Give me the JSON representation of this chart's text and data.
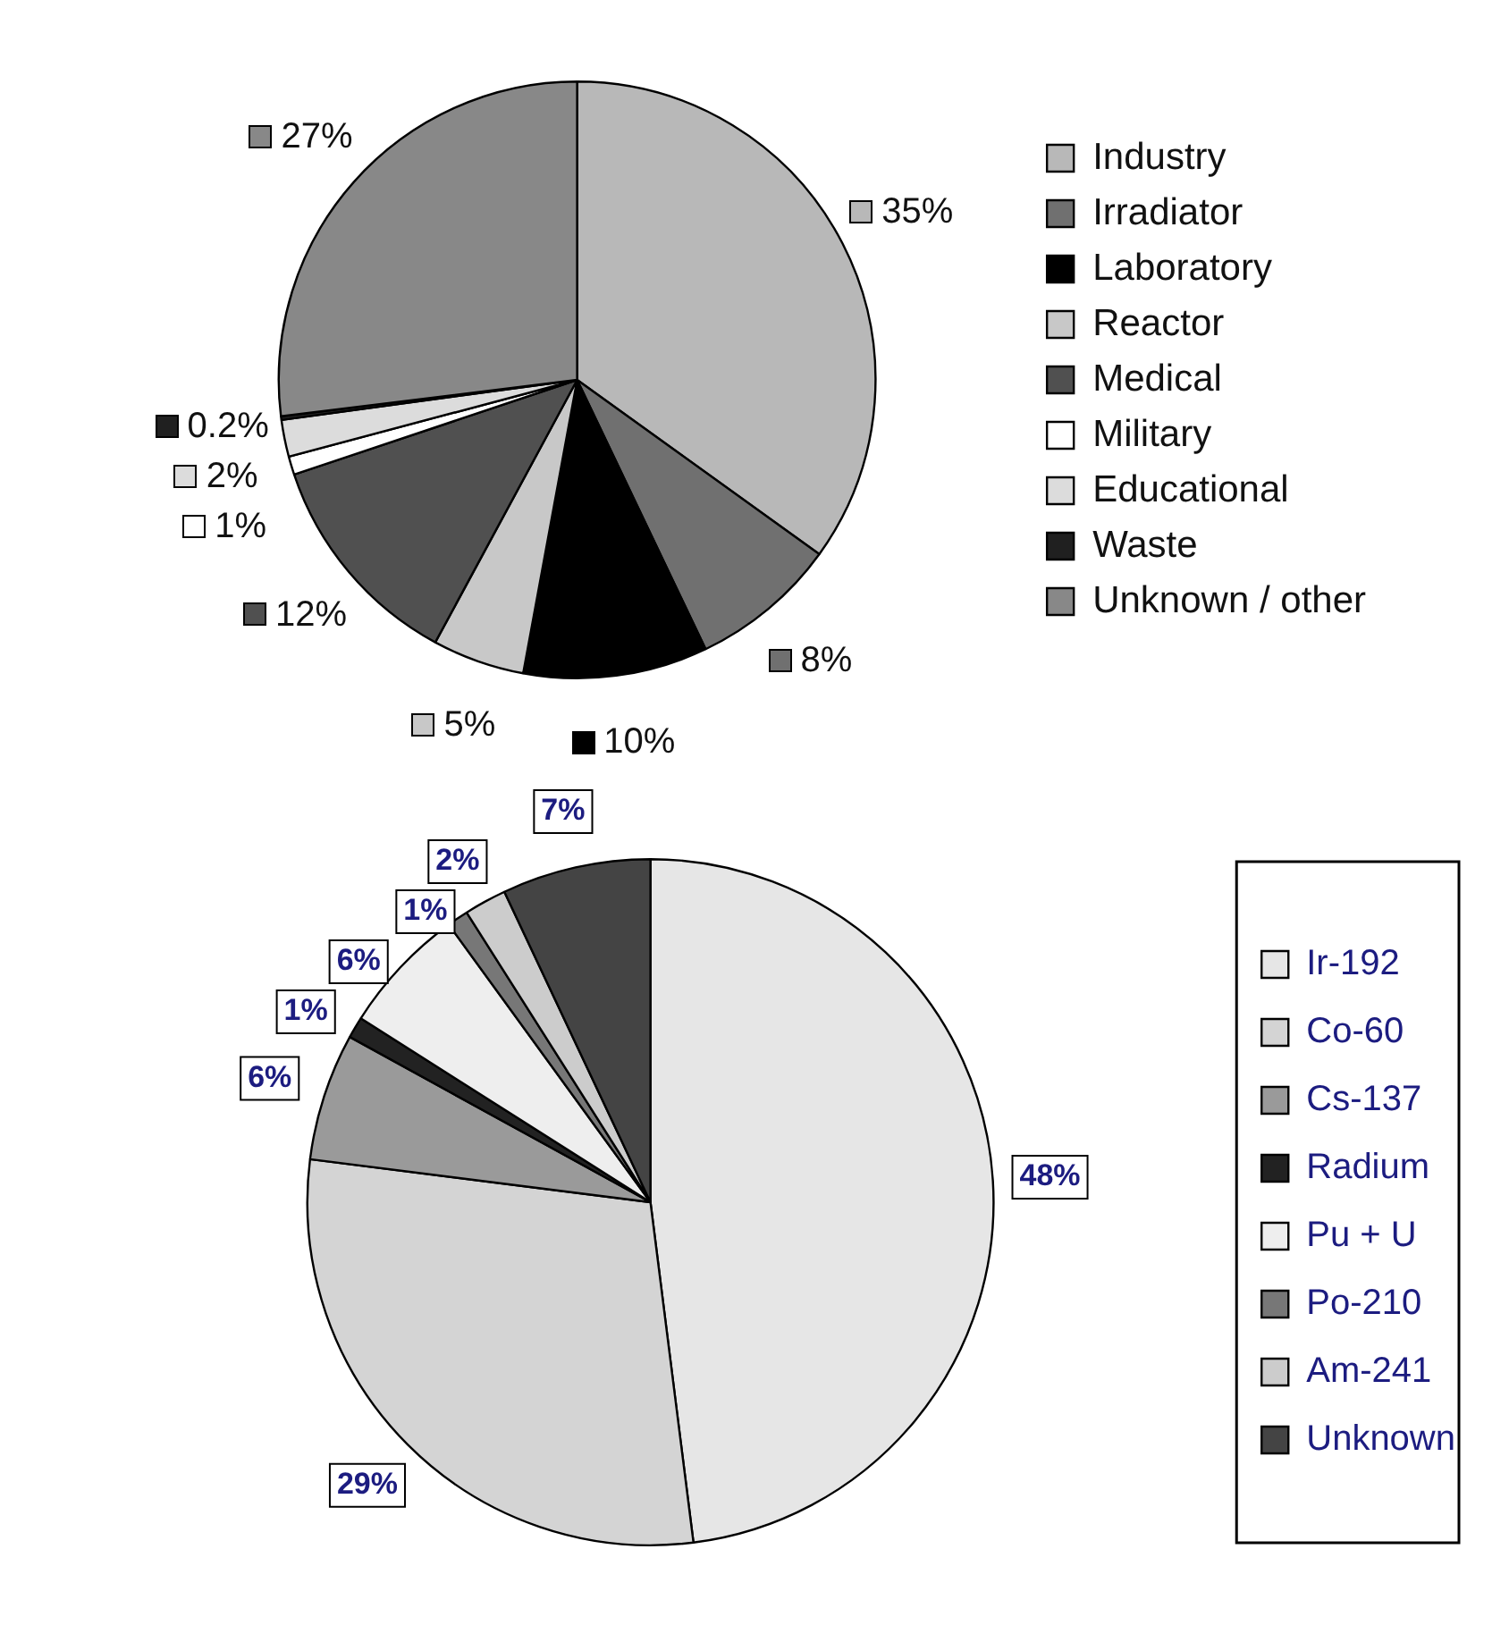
{
  "chart_data": [
    {
      "type": "pie",
      "categories": [
        "Industry",
        "Irradiator",
        "Laboratory",
        "Reactor",
        "Medical",
        "Military",
        "Educational",
        "Waste",
        "Unknown / other"
      ],
      "values": [
        35,
        8,
        10,
        5,
        12,
        1,
        2,
        0.2,
        27
      ],
      "value_labels": [
        "35%",
        "8%",
        "10%",
        "5%",
        "12%",
        "1%",
        "2%",
        "0.2%",
        "27%"
      ],
      "colors": [
        "#b8b8b8",
        "#707070",
        "#000000",
        "#c8c8c8",
        "#505050",
        "#ffffff",
        "#dcdcdc",
        "#202020",
        "#888888"
      ],
      "legend": "right"
    },
    {
      "type": "pie",
      "categories": [
        "Ir-192",
        "Co-60",
        "Cs-137",
        "Radium",
        "Pu + U",
        "Po-210",
        "Am-241",
        "Unknown"
      ],
      "values": [
        48,
        29,
        6,
        1,
        6,
        1,
        2,
        7
      ],
      "value_labels": [
        "48%",
        "29%",
        "6%",
        "1%",
        "6%",
        "1%",
        "2%",
        "7%"
      ],
      "colors": [
        "#e6e6e6",
        "#d4d4d4",
        "#9a9a9a",
        "#222222",
        "#eeeeee",
        "#777777",
        "#cccccc",
        "#444444"
      ],
      "legend": "right"
    }
  ]
}
